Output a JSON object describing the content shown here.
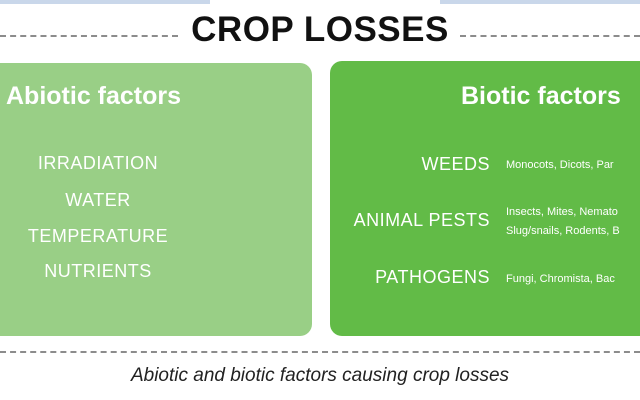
{
  "title": "CROP LOSSES",
  "abiotic": {
    "heading": "Abiotic factors",
    "items": [
      "IRRADIATION",
      "WATER",
      "TEMPERATURE",
      "NUTRIENTS"
    ]
  },
  "biotic": {
    "heading": "Biotic factors",
    "categories": [
      {
        "label": "WEEDS",
        "detail": [
          "Monocots, Dicots, Par"
        ]
      },
      {
        "label": "ANIMAL PESTS",
        "detail": [
          "Insects, Mites, Nemato",
          "Slug/snails, Rodents, B"
        ]
      },
      {
        "label": "PATHOGENS",
        "detail": [
          "Fungi, Chromista, Bac"
        ]
      }
    ]
  },
  "caption": "Abiotic and biotic factors causing crop losses",
  "colors": {
    "abiotic_panel": "#99cf86",
    "biotic_panel": "#62bb47",
    "panel_text": "#ffffff",
    "title_text": "#111111",
    "dash_line": "#8c8c8c"
  }
}
